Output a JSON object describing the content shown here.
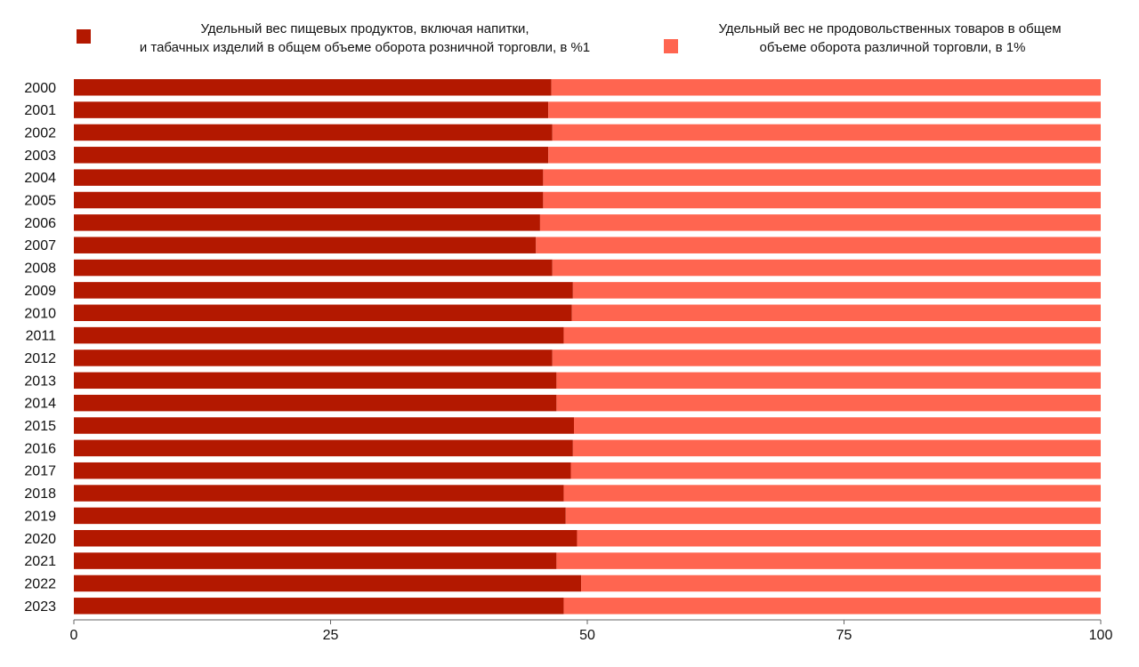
{
  "chart_data": {
    "type": "bar",
    "orientation": "horizontal",
    "stacked": true,
    "title": "",
    "xlabel": "",
    "ylabel": "",
    "xlim": [
      0,
      100
    ],
    "x_ticks": [
      "0",
      "25",
      "50",
      "75",
      "100"
    ],
    "x_tick_values": [
      0,
      25,
      50,
      75,
      100
    ],
    "grid": false,
    "legend_position": "top",
    "categories": [
      "2000",
      "2001",
      "2002",
      "2003",
      "2004",
      "2005",
      "2006",
      "2007",
      "2008",
      "2009",
      "2010",
      "2011",
      "2012",
      "2013",
      "2014",
      "2015",
      "2016",
      "2017",
      "2018",
      "2019",
      "2020",
      "2021",
      "2022",
      "2023"
    ],
    "series": [
      {
        "name_lines": [
          "Удельный вес пищевых продуктов, включая напитки,",
          "и табачных изделий в общем объеме оборота розничной торговли, в %1"
        ],
        "color": "#b31800",
        "values": [
          46.5,
          46.2,
          46.6,
          46.2,
          45.7,
          45.7,
          45.4,
          45.0,
          46.6,
          48.6,
          48.5,
          47.7,
          46.6,
          47.0,
          47.0,
          48.7,
          48.6,
          48.4,
          47.7,
          47.9,
          49.0,
          47.0,
          49.4,
          47.7
        ]
      },
      {
        "name_lines": [
          "Удельный вес не продовольственных товаров в общем",
          "объеме оборота различной торговли, в 1%"
        ],
        "color": "#ff6550",
        "values": [
          53.5,
          53.8,
          53.4,
          53.8,
          54.3,
          54.3,
          54.6,
          55.0,
          53.4,
          51.4,
          51.5,
          52.3,
          53.4,
          53.0,
          53.0,
          51.3,
          51.4,
          51.6,
          52.3,
          52.1,
          51.0,
          53.0,
          50.6,
          52.3
        ]
      }
    ]
  }
}
